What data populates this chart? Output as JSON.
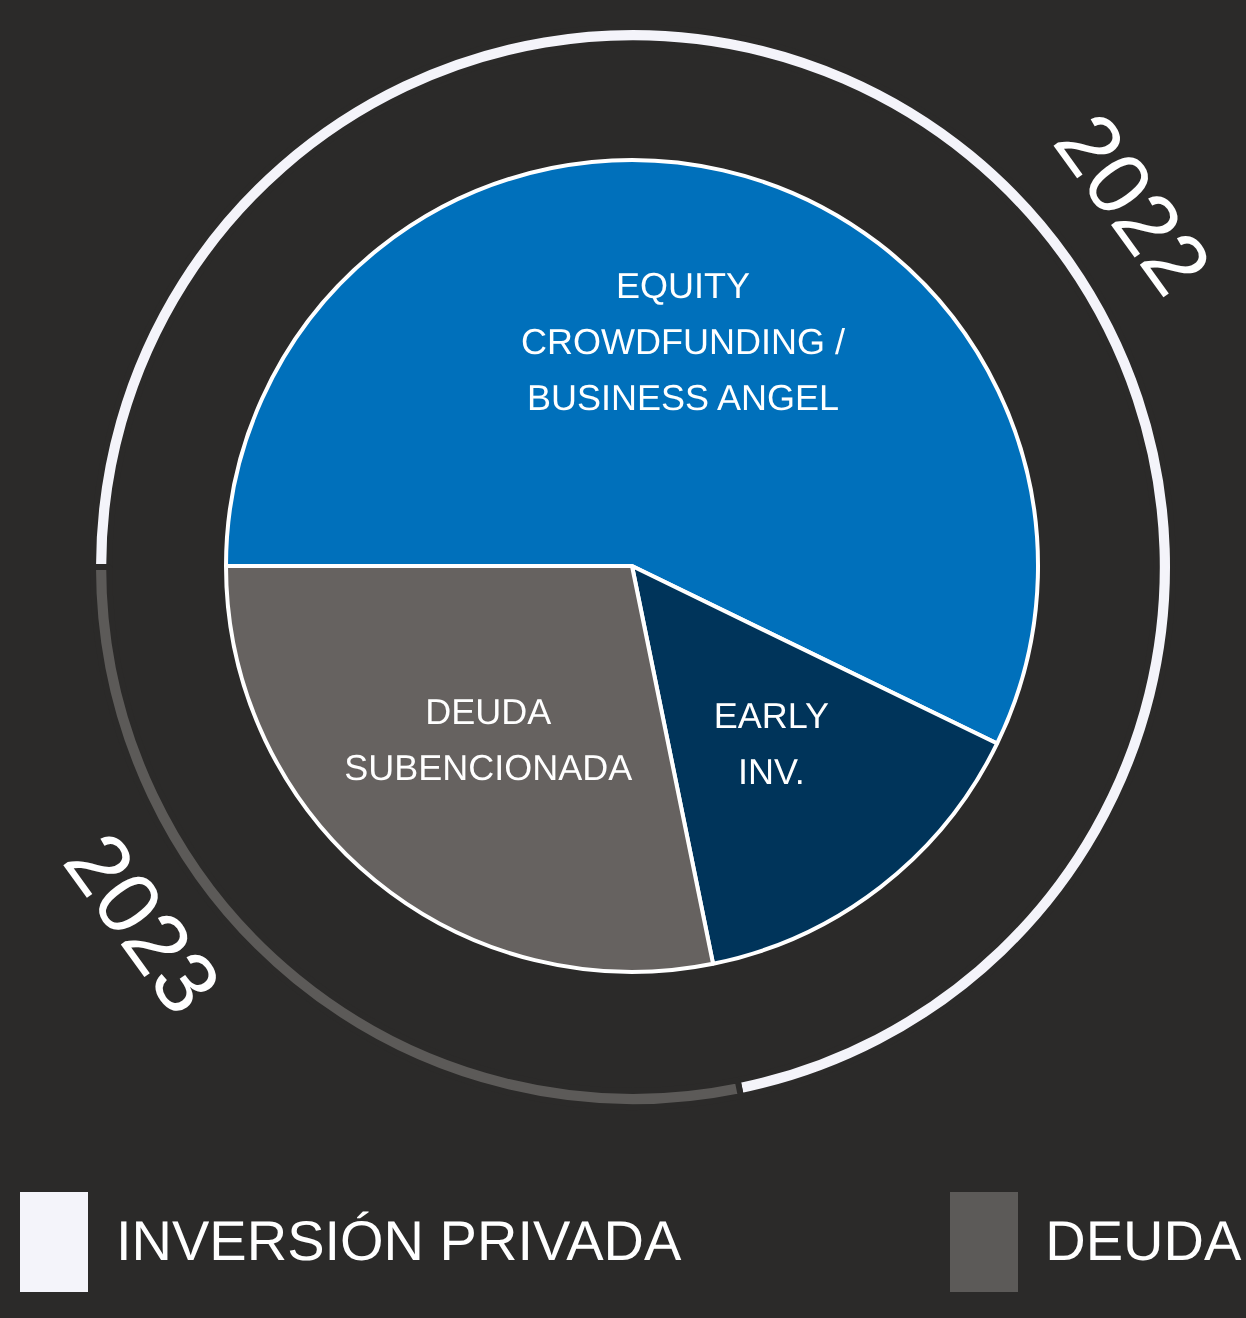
{
  "chart_data": [
    {
      "type": "pie",
      "categories": [
        "EQUITY CROWDFUNDING / BUSINESS ANGEL",
        "EARLY INV.",
        "DEUDA SUBENCIONADA"
      ],
      "values": [
        57.2,
        14.6,
        28.2
      ],
      "colors": [
        "#0070bb",
        "#00345a",
        "#666260"
      ]
    },
    {
      "type": "donut",
      "categories": [
        "2022",
        "2023"
      ],
      "values": [
        71.8,
        28.2
      ],
      "colors": [
        "#f4f4fa",
        "#5c5a58"
      ],
      "annotations": [
        "INVERSIÓN PRIVADA",
        "DEUDA"
      ]
    }
  ]
}
